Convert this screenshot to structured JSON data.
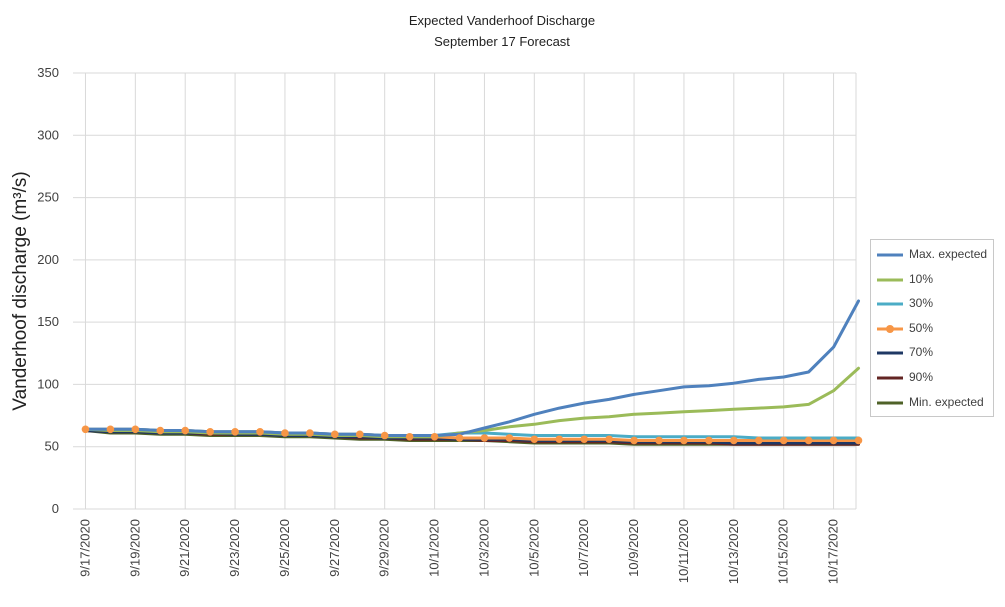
{
  "chart_data": {
    "type": "line",
    "title": "Expected Vanderhoof Discharge",
    "subtitle": "September 17 Forecast",
    "xlabel": "",
    "ylabel": "Vanderhoof discharge (m³/s)",
    "ylim": [
      0,
      350
    ],
    "yticks": [
      "0",
      "50",
      "100",
      "150",
      "200",
      "250",
      "300",
      "350"
    ],
    "xticks": [
      "9/17/2020",
      "9/19/2020",
      "9/21/2020",
      "9/23/2020",
      "9/25/2020",
      "9/27/2020",
      "9/29/2020",
      "10/1/2020",
      "10/3/2020",
      "10/5/2020",
      "10/7/2020",
      "10/9/2020",
      "10/11/2020",
      "10/13/2020",
      "10/15/2020",
      "10/17/2020"
    ],
    "x": [
      "9/17/2020",
      "9/18/2020",
      "9/19/2020",
      "9/20/2020",
      "9/21/2020",
      "9/22/2020",
      "9/23/2020",
      "9/24/2020",
      "9/25/2020",
      "9/26/2020",
      "9/27/2020",
      "9/28/2020",
      "9/29/2020",
      "9/30/2020",
      "10/1/2020",
      "10/2/2020",
      "10/3/2020",
      "10/4/2020",
      "10/5/2020",
      "10/6/2020",
      "10/7/2020",
      "10/8/2020",
      "10/9/2020",
      "10/10/2020",
      "10/11/2020",
      "10/12/2020",
      "10/13/2020",
      "10/14/2020",
      "10/15/2020",
      "10/16/2020",
      "10/17/2020",
      "10/18/2020"
    ],
    "grid": true,
    "legend_position": "right",
    "series": [
      {
        "name": "Max. expected",
        "color": "#4f81bd",
        "marker": false,
        "values": [
          64,
          64,
          64,
          63,
          63,
          62,
          62,
          62,
          61,
          61,
          60,
          60,
          59,
          59,
          59,
          60,
          65,
          70,
          76,
          81,
          85,
          88,
          92,
          95,
          98,
          99,
          101,
          104,
          106,
          110,
          130,
          167
        ]
      },
      {
        "name": "10%",
        "color": "#9bbb59",
        "marker": false,
        "values": [
          64,
          63,
          63,
          62,
          62,
          61,
          61,
          61,
          60,
          60,
          59,
          59,
          58,
          58,
          58,
          61,
          63,
          66,
          68,
          71,
          73,
          74,
          76,
          77,
          78,
          79,
          80,
          81,
          82,
          84,
          95,
          113
        ]
      },
      {
        "name": "30%",
        "color": "#4bacc6",
        "marker": false,
        "values": [
          64,
          64,
          64,
          63,
          63,
          62,
          62,
          62,
          61,
          61,
          60,
          60,
          59,
          59,
          59,
          61,
          61,
          60,
          59,
          59,
          59,
          59,
          58,
          58,
          58,
          58,
          58,
          57,
          57,
          57,
          57,
          57
        ]
      },
      {
        "name": "50%",
        "color": "#f79646",
        "marker": true,
        "values": [
          64,
          64,
          64,
          63,
          63,
          62,
          62,
          62,
          61,
          61,
          60,
          60,
          59,
          58,
          58,
          57,
          57,
          57,
          56,
          56,
          56,
          56,
          55,
          55,
          55,
          55,
          55,
          55,
          55,
          55,
          55,
          55
        ]
      },
      {
        "name": "70%",
        "color": "#1f3864",
        "marker": false,
        "values": [
          63,
          62,
          62,
          61,
          61,
          61,
          60,
          60,
          59,
          59,
          58,
          58,
          57,
          57,
          57,
          56,
          56,
          56,
          55,
          55,
          55,
          55,
          54,
          54,
          54,
          54,
          53,
          53,
          53,
          53,
          53,
          53
        ]
      },
      {
        "name": "90%",
        "color": "#632523",
        "marker": false,
        "values": [
          63,
          62,
          62,
          61,
          61,
          60,
          60,
          60,
          59,
          59,
          58,
          57,
          57,
          56,
          56,
          56,
          55,
          55,
          54,
          54,
          54,
          54,
          53,
          53,
          53,
          53,
          52,
          52,
          52,
          52,
          52,
          52
        ]
      },
      {
        "name": "Min. expected",
        "color": "#4f6228",
        "marker": false,
        "values": [
          63,
          61,
          61,
          60,
          60,
          59,
          59,
          59,
          58,
          58,
          57,
          56,
          56,
          55,
          55,
          55,
          55,
          54,
          53,
          53,
          53,
          53,
          52,
          52,
          52,
          52,
          52,
          52,
          52,
          52,
          52,
          52
        ]
      }
    ]
  }
}
